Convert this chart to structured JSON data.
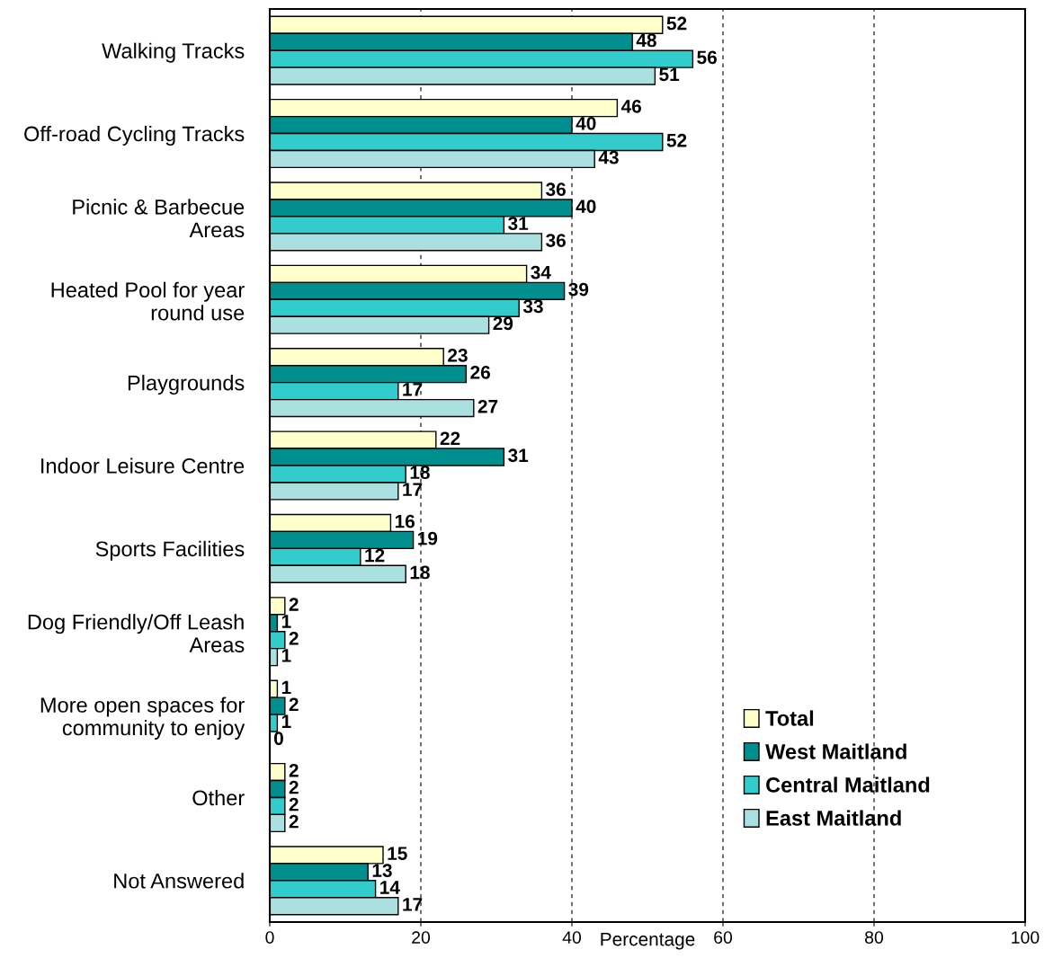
{
  "chart_data": {
    "type": "bar",
    "orientation": "horizontal",
    "xlabel": "Percentage",
    "categories": [
      "Walking Tracks",
      "Off-road Cycling Tracks",
      "Picnic & Barbecue\nAreas",
      "Heated Pool for year\nround use",
      "Playgrounds",
      "Indoor Leisure Centre",
      "Sports Facilities",
      "Dog Friendly/Off Leash\nAreas",
      "More open spaces for\ncommunity to enjoy",
      "Other",
      "Not Answered"
    ],
    "series": [
      {
        "name": "Total",
        "color": "#ffffcc",
        "values": [
          52,
          46,
          36,
          34,
          23,
          22,
          16,
          2,
          1,
          2,
          15
        ]
      },
      {
        "name": "West Maitland",
        "color": "#008e8e",
        "values": [
          48,
          40,
          40,
          39,
          26,
          31,
          19,
          1,
          2,
          2,
          13
        ]
      },
      {
        "name": "Central Maitland",
        "color": "#33cccc",
        "values": [
          56,
          52,
          31,
          33,
          17,
          18,
          12,
          2,
          1,
          2,
          14
        ]
      },
      {
        "name": "East Maitland",
        "color": "#aae0e0",
        "values": [
          51,
          43,
          36,
          29,
          27,
          17,
          18,
          1,
          0,
          2,
          17
        ]
      }
    ],
    "xlim": [
      0,
      100
    ],
    "xticks": [
      0,
      20,
      40,
      60,
      80,
      100
    ],
    "grid": "x",
    "legend": "bottom right",
    "data_labels": true
  }
}
